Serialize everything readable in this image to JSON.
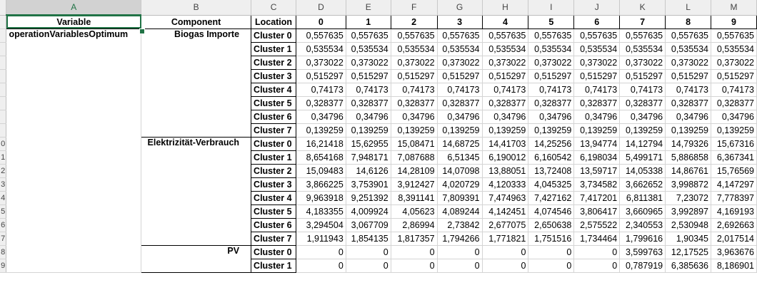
{
  "columns": [
    "A",
    "B",
    "C",
    "D",
    "E",
    "F",
    "G",
    "H",
    "I",
    "J",
    "K",
    "L",
    "M"
  ],
  "selected_column": "A",
  "header_row": [
    "Variable",
    "Component",
    "Location",
    "0",
    "1",
    "2",
    "3",
    "4",
    "5",
    "6",
    "7",
    "8",
    "9"
  ],
  "row_numbers": [
    "",
    "",
    "",
    "",
    "",
    "",
    "",
    "",
    "",
    "0",
    "1",
    "2",
    "3",
    "4",
    "5",
    "6",
    "7",
    "8",
    "9"
  ],
  "variable": "operationVariablesOptimum",
  "groups": [
    {
      "component": "Biogas Importe",
      "rows": [
        {
          "location": "Cluster 0",
          "values": [
            "0,557635",
            "0,557635",
            "0,557635",
            "0,557635",
            "0,557635",
            "0,557635",
            "0,557635",
            "0,557635",
            "0,557635",
            "0,557635"
          ]
        },
        {
          "location": "Cluster 1",
          "values": [
            "0,535534",
            "0,535534",
            "0,535534",
            "0,535534",
            "0,535534",
            "0,535534",
            "0,535534",
            "0,535534",
            "0,535534",
            "0,535534"
          ]
        },
        {
          "location": "Cluster 2",
          "values": [
            "0,373022",
            "0,373022",
            "0,373022",
            "0,373022",
            "0,373022",
            "0,373022",
            "0,373022",
            "0,373022",
            "0,373022",
            "0,373022"
          ]
        },
        {
          "location": "Cluster 3",
          "values": [
            "0,515297",
            "0,515297",
            "0,515297",
            "0,515297",
            "0,515297",
            "0,515297",
            "0,515297",
            "0,515297",
            "0,515297",
            "0,515297"
          ]
        },
        {
          "location": "Cluster 4",
          "values": [
            "0,74173",
            "0,74173",
            "0,74173",
            "0,74173",
            "0,74173",
            "0,74173",
            "0,74173",
            "0,74173",
            "0,74173",
            "0,74173"
          ]
        },
        {
          "location": "Cluster 5",
          "values": [
            "0,328377",
            "0,328377",
            "0,328377",
            "0,328377",
            "0,328377",
            "0,328377",
            "0,328377",
            "0,328377",
            "0,328377",
            "0,328377"
          ]
        },
        {
          "location": "Cluster 6",
          "values": [
            "0,34796",
            "0,34796",
            "0,34796",
            "0,34796",
            "0,34796",
            "0,34796",
            "0,34796",
            "0,34796",
            "0,34796",
            "0,34796"
          ]
        },
        {
          "location": "Cluster 7",
          "values": [
            "0,139259",
            "0,139259",
            "0,139259",
            "0,139259",
            "0,139259",
            "0,139259",
            "0,139259",
            "0,139259",
            "0,139259",
            "0,139259"
          ]
        }
      ]
    },
    {
      "component": "Elektrizität-Verbrauch",
      "rows": [
        {
          "location": "Cluster 0",
          "values": [
            "16,21418",
            "15,62955",
            "15,08471",
            "14,68725",
            "14,41703",
            "14,25256",
            "13,94774",
            "14,12794",
            "14,79326",
            "15,67316"
          ]
        },
        {
          "location": "Cluster 1",
          "values": [
            "8,654168",
            "7,948171",
            "7,087688",
            "6,51345",
            "6,190012",
            "6,160542",
            "6,198034",
            "5,499171",
            "5,886858",
            "6,367341"
          ]
        },
        {
          "location": "Cluster 2",
          "values": [
            "15,09483",
            "14,6126",
            "14,28109",
            "14,07098",
            "13,88051",
            "13,72408",
            "13,59717",
            "14,05338",
            "14,86761",
            "15,76569"
          ]
        },
        {
          "location": "Cluster 3",
          "values": [
            "3,866225",
            "3,753901",
            "3,912427",
            "4,020729",
            "4,120333",
            "4,045325",
            "3,734582",
            "3,662652",
            "3,998872",
            "4,147297"
          ]
        },
        {
          "location": "Cluster 4",
          "values": [
            "9,963918",
            "9,251392",
            "8,391141",
            "7,809391",
            "7,474963",
            "7,427162",
            "7,417201",
            "6,811381",
            "7,23072",
            "7,778397"
          ]
        },
        {
          "location": "Cluster 5",
          "values": [
            "4,183355",
            "4,009924",
            "4,05623",
            "4,089244",
            "4,142451",
            "4,074546",
            "3,806417",
            "3,660965",
            "3,992897",
            "4,169193"
          ]
        },
        {
          "location": "Cluster 6",
          "values": [
            "3,294504",
            "3,067709",
            "2,86994",
            "2,73842",
            "2,677075",
            "2,650638",
            "2,575522",
            "2,340553",
            "2,530948",
            "2,692663"
          ]
        },
        {
          "location": "Cluster 7",
          "values": [
            "1,911943",
            "1,854135",
            "1,817357",
            "1,794266",
            "1,771821",
            "1,751516",
            "1,734464",
            "1,799616",
            "1,90345",
            "2,017514"
          ]
        }
      ]
    },
    {
      "component": "PV",
      "rows": [
        {
          "location": "Cluster 0",
          "values": [
            "0",
            "0",
            "0",
            "0",
            "0",
            "0",
            "0",
            "3,599763",
            "12,17525",
            "3,963676"
          ]
        },
        {
          "location": "Cluster 1",
          "values": [
            "0",
            "0",
            "0",
            "0",
            "0",
            "0",
            "0",
            "0,787919",
            "6,385636",
            "8,186901"
          ]
        }
      ]
    }
  ]
}
